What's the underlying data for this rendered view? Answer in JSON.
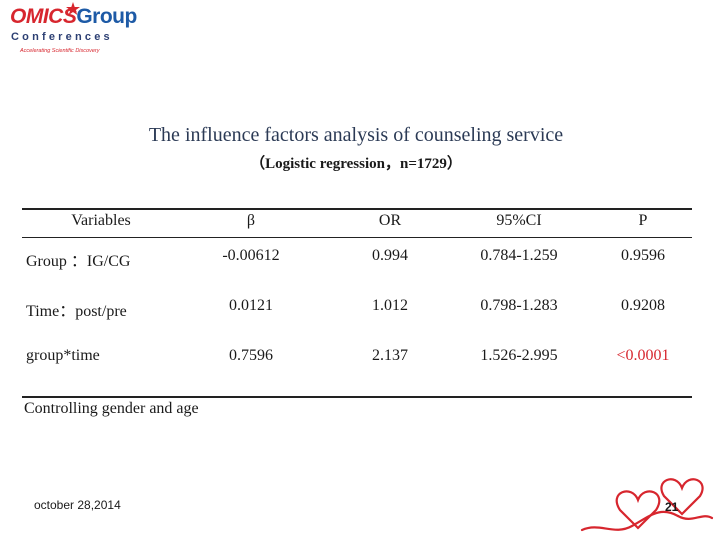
{
  "logo": {
    "brand_a": "OMICS",
    "brand_b": "Group",
    "conferences": "Conferences",
    "tagline": "Accelerating Scientific Discovery",
    "colors": {
      "red": "#d7262e",
      "blue": "#1d5aa6"
    }
  },
  "slide": {
    "title": "The influence factors analysis of counseling service",
    "subtitle": "（Logistic regression，n=1729）"
  },
  "table": {
    "columns": [
      "Variables",
      "β",
      "OR",
      "95%CI",
      "P"
    ],
    "rows": [
      {
        "variable": "Group ：IG/CG",
        "beta": "-0.00612",
        "or": "0.994",
        "ci": "0.784-1.259",
        "p": "0.9596"
      },
      {
        "variable": "Time：post/pre",
        "beta": "0.0121",
        "or": "1.012",
        "ci": "0.798-1.283",
        "p": "0.9208"
      },
      {
        "variable": "group*time",
        "beta": "0.7596",
        "or": "2.137",
        "ci": "1.526-2.995",
        "p": "<0.0001"
      }
    ],
    "note": "Controlling gender and age",
    "highlight_color": "#d7262e"
  },
  "footer": {
    "date": "october 28,2014",
    "page": "21",
    "decoration": "red-ribbon-hearts"
  }
}
